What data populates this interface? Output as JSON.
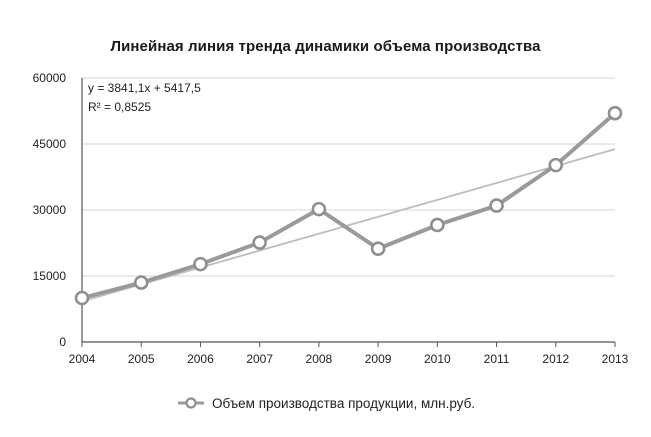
{
  "chart_data": {
    "type": "line",
    "title": "Линейная линия тренда динамики объема производства",
    "xlabel": "",
    "ylabel": "",
    "categories": [
      "2004",
      "2005",
      "2006",
      "2007",
      "2008",
      "2009",
      "2010",
      "2011",
      "2012",
      "2013"
    ],
    "yticks": [
      "0",
      "15000",
      "30000",
      "45000",
      "60000"
    ],
    "ylim": [
      0,
      60000
    ],
    "series": [
      {
        "name": "Объем производства продукции, млн.руб.",
        "values": [
          10000,
          13500,
          17700,
          22600,
          30200,
          21200,
          26600,
          31000,
          40200,
          52000
        ],
        "color": "#9a9a9a"
      }
    ],
    "trendline": {
      "type": "linear",
      "slope": 3841.1,
      "intercept": 5417.5,
      "equation": "y = 3841,1x + 5417,5",
      "r_squared": "R² = 0,8525",
      "color": "#bdbdbd"
    },
    "grid": "horizontal",
    "legend_position": "bottom"
  }
}
